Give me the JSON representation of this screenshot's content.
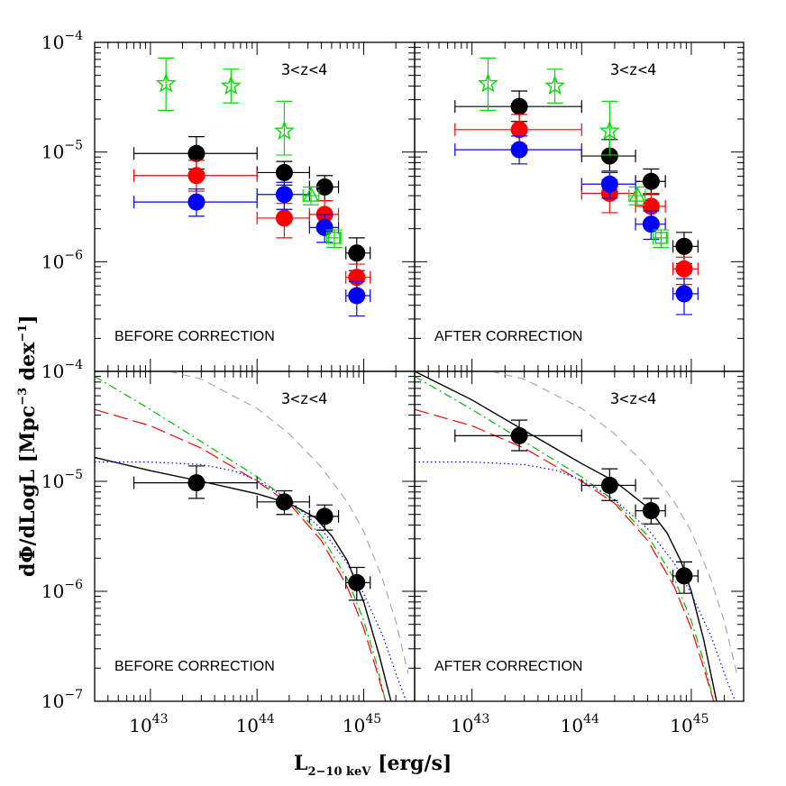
{
  "chart_data": [
    {
      "type": "scatter",
      "panel": "top-left",
      "label": "BEFORE CORRECTION",
      "zlabel": "3<z<4",
      "xlog": true,
      "ylog": true,
      "xlim": [
        3e+42,
        3e+45
      ],
      "ylim": [
        1e-07,
        0.0001
      ],
      "series": [
        {
          "kind": "points",
          "marker": "circle",
          "color": "#000000",
          "x": [
            2.7e+43,
            1.8e+44,
            4.3e+44,
            8.6e+44
          ],
          "y": [
            9.7e-06,
            6.5e-06,
            4.8e-06,
            1.2e-06
          ],
          "xerr_lo": [
            7e+42,
            1e+44,
            3.1e+44,
            6.8e+44
          ],
          "xerr_hi": [
            1e+44,
            3.1e+44,
            5.8e+44,
            1.15e+45
          ],
          "yerr_lo": [
            7e-06,
            5e-06,
            3.6e-06,
            8.3e-07
          ],
          "yerr_hi": [
            1.38e-05,
            8.2e-06,
            6.1e-06,
            1.65e-06
          ]
        },
        {
          "kind": "points",
          "marker": "circle",
          "color": "#ff0000",
          "x": [
            2.7e+43,
            1.8e+44,
            4.3e+44,
            8.6e+44
          ],
          "y": [
            6.1e-06,
            2.5e-06,
            2.7e-06,
            7.2e-07
          ],
          "xerr_lo": [
            7e+42,
            1e+44,
            3.1e+44,
            6.8e+44
          ],
          "xerr_hi": [
            1e+44,
            3.1e+44,
            5.8e+44,
            1.15e+45
          ],
          "yerr_lo": [
            4.4e-06,
            1.65e-06,
            1.9e-06,
            5.2e-07
          ],
          "yerr_hi": [
            8.4e-06,
            3.4e-06,
            3.6e-06,
            9.5e-07
          ]
        },
        {
          "kind": "points",
          "marker": "circle",
          "color": "#0000ff",
          "x": [
            2.7e+43,
            1.8e+44,
            4.3e+44,
            8.6e+44
          ],
          "y": [
            3.5e-06,
            4.1e-06,
            2.05e-06,
            4.9e-07
          ],
          "xerr_lo": [
            7e+42,
            1e+44,
            3.1e+44,
            6.8e+44
          ],
          "xerr_hi": [
            1e+44,
            3.1e+44,
            5.8e+44,
            1.15e+45
          ],
          "yerr_lo": [
            2.6e-06,
            3e-06,
            1.5e-06,
            3.2e-07
          ],
          "yerr_hi": [
            4.6e-06,
            5.3e-06,
            2.7e-06,
            6.6e-07
          ]
        },
        {
          "kind": "points",
          "marker": "star",
          "color": "#00dd00",
          "x": [
            1.4e+43,
            5.7e+43,
            1.8e+44
          ],
          "y": [
            4.2e-05,
            4e-05,
            1.55e-05
          ],
          "yerr_lo": [
            2.4e-05,
            2.8e-05,
            9.4e-06
          ],
          "yerr_hi": [
            7.2e-05,
            5.7e-05,
            2.9e-05
          ]
        },
        {
          "kind": "points",
          "marker": "triangle",
          "color": "#00dd00",
          "x": [
            3.2e+44
          ],
          "y": [
            4e-06
          ],
          "xerr_lo": [
            2.7e+44
          ],
          "xerr_hi": [
            3.8e+44
          ],
          "yerr_lo": [
            3.3e-06
          ],
          "yerr_hi": [
            4.8e-06
          ]
        },
        {
          "kind": "points",
          "marker": "square",
          "color": "#00dd00",
          "x": [
            5.3e+44
          ],
          "y": [
            1.65e-06
          ],
          "xerr_lo": [
            4.5e+44
          ],
          "xerr_hi": [
            6.1e+44
          ],
          "yerr_lo": [
            1.35e-06
          ],
          "yerr_hi": [
            1.95e-06
          ]
        }
      ]
    },
    {
      "type": "scatter",
      "panel": "top-right",
      "label": "AFTER CORRECTION",
      "zlabel": "3<z<4",
      "xlog": true,
      "ylog": true,
      "xlim": [
        3e+42,
        3e+45
      ],
      "ylim": [
        1e-07,
        0.0001
      ],
      "series": [
        {
          "kind": "points",
          "marker": "circle",
          "color": "#000000",
          "x": [
            2.7e+43,
            1.8e+44,
            4.3e+44,
            8.6e+44
          ],
          "y": [
            2.6e-05,
            9.2e-06,
            5.4e-06,
            1.38e-06
          ],
          "xerr_lo": [
            7e+42,
            1e+44,
            3.1e+44,
            6.8e+44
          ],
          "xerr_hi": [
            1e+44,
            3.1e+44,
            5.8e+44,
            1.15e+45
          ],
          "yerr_lo": [
            1.9e-05,
            6.7e-06,
            4.1e-06,
            9.6e-07
          ],
          "yerr_hi": [
            3.6e-05,
            1.3e-05,
            7e-06,
            1.85e-06
          ]
        },
        {
          "kind": "points",
          "marker": "circle",
          "color": "#ff0000",
          "x": [
            2.7e+43,
            1.8e+44,
            4.3e+44,
            8.6e+44
          ],
          "y": [
            1.6e-05,
            4.2e-06,
            3.2e-06,
            8.6e-07
          ],
          "xerr_lo": [
            7e+42,
            1e+44,
            3.1e+44,
            6.8e+44
          ],
          "xerr_hi": [
            1e+44,
            3.1e+44,
            5.8e+44,
            1.15e+45
          ],
          "yerr_lo": [
            1.15e-05,
            2.8e-06,
            2.3e-06,
            6.2e-07
          ],
          "yerr_hi": [
            2.2e-05,
            5.6e-06,
            4.2e-06,
            1.1e-06
          ]
        },
        {
          "kind": "points",
          "marker": "circle",
          "color": "#0000ff",
          "x": [
            2.7e+43,
            1.8e+44,
            4.3e+44,
            8.6e+44
          ],
          "y": [
            1.05e-05,
            5.1e-06,
            2.2e-06,
            5.1e-07
          ],
          "xerr_lo": [
            7e+42,
            1e+44,
            3.1e+44,
            6.8e+44
          ],
          "xerr_hi": [
            1e+44,
            3.1e+44,
            5.8e+44,
            1.15e+45
          ],
          "yerr_lo": [
            7.8e-06,
            3.8e-06,
            1.6e-06,
            3.3e-07
          ],
          "yerr_hi": [
            1.4e-05,
            6.5e-06,
            2.9e-06,
            7e-07
          ]
        },
        {
          "kind": "points",
          "marker": "star",
          "color": "#00dd00",
          "x": [
            1.4e+43,
            5.7e+43,
            1.8e+44
          ],
          "y": [
            4.2e-05,
            4e-05,
            1.55e-05
          ],
          "yerr_lo": [
            2.4e-05,
            2.8e-05,
            9.4e-06
          ],
          "yerr_hi": [
            7.2e-05,
            5.7e-05,
            2.9e-05
          ]
        },
        {
          "kind": "points",
          "marker": "triangle",
          "color": "#00dd00",
          "x": [
            3.2e+44
          ],
          "y": [
            4e-06
          ],
          "xerr_lo": [
            2.7e+44
          ],
          "xerr_hi": [
            3.8e+44
          ],
          "yerr_lo": [
            3.3e-06
          ],
          "yerr_hi": [
            4.8e-06
          ]
        },
        {
          "kind": "points",
          "marker": "square",
          "color": "#00dd00",
          "x": [
            5.3e+44
          ],
          "y": [
            1.65e-06
          ],
          "xerr_lo": [
            4.5e+44
          ],
          "xerr_hi": [
            6.1e+44
          ],
          "yerr_lo": [
            1.35e-06
          ],
          "yerr_hi": [
            1.95e-06
          ]
        }
      ]
    },
    {
      "type": "line",
      "panel": "bottom-left",
      "label": "BEFORE CORRECTION",
      "zlabel": "3<z<4",
      "xlog": true,
      "ylog": true,
      "xlim": [
        3e+42,
        3e+45
      ],
      "ylim": [
        1e-07,
        0.0001
      ],
      "series": [
        {
          "kind": "points",
          "marker": "circle",
          "color": "#000000",
          "x": [
            2.7e+43,
            1.8e+44,
            4.3e+44,
            8.6e+44
          ],
          "y": [
            9.7e-06,
            6.5e-06,
            4.8e-06,
            1.2e-06
          ],
          "xerr_lo": [
            7e+42,
            1e+44,
            3.1e+44,
            6.8e+44
          ],
          "xerr_hi": [
            1e+44,
            3.1e+44,
            5.8e+44,
            1.15e+45
          ],
          "yerr_lo": [
            7e-06,
            5e-06,
            3.6e-06,
            8.3e-07
          ],
          "yerr_hi": [
            1.38e-05,
            8.2e-06,
            6.1e-06,
            1.65e-06
          ]
        },
        {
          "kind": "curve",
          "style": "solid",
          "color": "#000000",
          "x": [
            3e+42,
            1e+43,
            3e+43,
            1e+44,
            2e+44,
            3.5e+44,
            5e+44,
            7e+44,
            1e+45,
            1.4e+45,
            1.8e+45
          ],
          "y": [
            1.65e-05,
            1.25e-05,
            1e-05,
            7.7e-06,
            6.3e-06,
            4.7e-06,
            3.2e-06,
            1.9e-06,
            8e-07,
            2.6e-07,
            1e-07
          ]
        },
        {
          "kind": "curve",
          "style": "dotted",
          "color": "#0000ff",
          "x": [
            3e+42,
            1e+43,
            3e+43,
            6e+43,
            1e+44,
            2e+44,
            4e+44,
            7e+44,
            1e+45,
            1.5e+45,
            2e+45,
            2.5e+45
          ],
          "y": [
            1.5e-05,
            1.5e-05,
            1.42e-05,
            1.25e-05,
            1.02e-05,
            6.8e-06,
            3.7e-06,
            1.8e-06,
            9.5e-07,
            4e-07,
            1.8e-07,
            1e-07
          ]
        },
        {
          "kind": "curve",
          "style": "dashdot",
          "color": "#00bb00",
          "x": [
            3e+42,
            1e+43,
            3e+43,
            1e+44,
            2e+44,
            4e+44,
            7e+44,
            1e+45,
            1.3e+45,
            1.6e+45
          ],
          "y": [
            9e-05,
            4.5e-05,
            2.3e-05,
            1.1e-05,
            6.6e-06,
            3.2e-06,
            1.3e-06,
            5.4e-07,
            2.3e-07,
            1e-07
          ]
        },
        {
          "kind": "curve",
          "style": "longdash",
          "color": "#ff0000",
          "x": [
            3e+42,
            1e+43,
            3e+43,
            1e+44,
            2e+44,
            4e+44,
            7e+44,
            1e+45,
            1.3e+45,
            1.6e+45
          ],
          "y": [
            4.5e-05,
            3.2e-05,
            2e-05,
            1e-05,
            6.3e-06,
            2.9e-06,
            1.1e-06,
            4.6e-07,
            2e-07,
            1e-07
          ]
        },
        {
          "kind": "curve",
          "style": "dashed",
          "color": "#aaaaaa",
          "x": [
            1.5e+43,
            3e+43,
            1e+44,
            2e+44,
            4e+44,
            7e+44,
            1e+45,
            1.5e+45,
            2e+45,
            2.6e+45
          ],
          "y": [
            0.0001,
            8.5e-05,
            4.6e-05,
            2.7e-05,
            1.35e-05,
            6.5e-06,
            3.5e-06,
            1.3e-06,
            5.3e-07,
            1.8e-07
          ]
        }
      ]
    },
    {
      "type": "line",
      "panel": "bottom-right",
      "label": "AFTER CORRECTION",
      "zlabel": "3<z<4",
      "xlog": true,
      "ylog": true,
      "xlim": [
        3e+42,
        3e+45
      ],
      "ylim": [
        1e-07,
        0.0001
      ],
      "series": [
        {
          "kind": "points",
          "marker": "circle",
          "color": "#000000",
          "x": [
            2.7e+43,
            1.8e+44,
            4.3e+44,
            8.6e+44
          ],
          "y": [
            2.6e-05,
            9.2e-06,
            5.4e-06,
            1.38e-06
          ],
          "xerr_lo": [
            7e+42,
            1e+44,
            3.1e+44,
            6.8e+44
          ],
          "xerr_hi": [
            1e+44,
            3.1e+44,
            5.8e+44,
            1.15e+45
          ],
          "yerr_lo": [
            1.9e-05,
            6.7e-06,
            4.1e-06,
            9.6e-07
          ],
          "yerr_hi": [
            3.6e-05,
            1.3e-05,
            7e-06,
            1.85e-06
          ]
        },
        {
          "kind": "curve",
          "style": "solid",
          "color": "#000000",
          "x": [
            3e+42,
            1e+43,
            3e+43,
            1e+44,
            2e+44,
            4e+44,
            6e+44,
            8e+44,
            1e+45,
            1.3e+45,
            1.7e+45
          ],
          "y": [
            0.0001,
            5.5e-05,
            2.9e-05,
            1.45e-05,
            1e-05,
            5.8e-06,
            3.4e-06,
            1.9e-06,
            1e-06,
            3.6e-07,
            1e-07
          ]
        },
        {
          "kind": "curve",
          "style": "dotted",
          "color": "#0000ff",
          "x": [
            3e+42,
            1e+43,
            3e+43,
            6e+43,
            1e+44,
            2e+44,
            4e+44,
            7e+44,
            1e+45,
            1.5e+45,
            2e+45,
            2.5e+45
          ],
          "y": [
            1.5e-05,
            1.5e-05,
            1.42e-05,
            1.25e-05,
            1.02e-05,
            6.8e-06,
            3.7e-06,
            1.8e-06,
            9.5e-07,
            4e-07,
            1.8e-07,
            1e-07
          ]
        },
        {
          "kind": "curve",
          "style": "dashdot",
          "color": "#00bb00",
          "x": [
            3e+42,
            1e+43,
            3e+43,
            1e+44,
            2e+44,
            4e+44,
            7e+44,
            1e+45,
            1.3e+45,
            1.6e+45
          ],
          "y": [
            9e-05,
            4.5e-05,
            2.3e-05,
            1.1e-05,
            6.6e-06,
            3.2e-06,
            1.3e-06,
            5.4e-07,
            2.3e-07,
            1e-07
          ]
        },
        {
          "kind": "curve",
          "style": "longdash",
          "color": "#ff0000",
          "x": [
            3e+42,
            1e+43,
            3e+43,
            1e+44,
            2e+44,
            4e+44,
            7e+44,
            1e+45,
            1.3e+45,
            1.6e+45
          ],
          "y": [
            4.5e-05,
            3.2e-05,
            2e-05,
            1e-05,
            6.3e-06,
            2.9e-06,
            1.1e-06,
            4.6e-07,
            2e-07,
            1e-07
          ]
        },
        {
          "kind": "curve",
          "style": "dashed",
          "color": "#aaaaaa",
          "x": [
            1.5e+43,
            3e+43,
            1e+44,
            2e+44,
            4e+44,
            7e+44,
            1e+45,
            1.5e+45,
            2e+45,
            2.6e+45
          ],
          "y": [
            0.0001,
            8.5e-05,
            4.6e-05,
            2.7e-05,
            1.35e-05,
            6.5e-06,
            3.5e-06,
            1.3e-06,
            5.3e-07,
            1.8e-07
          ]
        }
      ]
    }
  ],
  "axes": {
    "xlabel_main": "L",
    "xlabel_sub": "2−10 keV",
    "xlabel_unit": "[erg/s]",
    "ylabel_main": "dΦ/dLogL",
    "ylabel_unit_prefix": "[Mpc",
    "ylabel_unit_exp1": "−3",
    "ylabel_unit_mid": " dex",
    "ylabel_unit_exp2": "−1",
    "ylabel_unit_suffix": "]",
    "xticks": [
      {
        "base": "10",
        "exp": "43",
        "value": 1e+43
      },
      {
        "base": "10",
        "exp": "44",
        "value": 1e+44
      },
      {
        "base": "10",
        "exp": "45",
        "value": 1e+45
      }
    ],
    "yticks_top": [
      {
        "base": "10",
        "exp": "−4",
        "value": 0.0001
      },
      {
        "base": "10",
        "exp": "−5",
        "value": 1e-05
      },
      {
        "base": "10",
        "exp": "−6",
        "value": 1e-06
      }
    ],
    "yticks_bottom": [
      {
        "base": "10",
        "exp": "−4",
        "value": 0.0001
      },
      {
        "base": "10",
        "exp": "−5",
        "value": 1e-05
      },
      {
        "base": "10",
        "exp": "−6",
        "value": 1e-06
      },
      {
        "base": "10",
        "exp": "−7",
        "value": 1e-07
      }
    ]
  }
}
